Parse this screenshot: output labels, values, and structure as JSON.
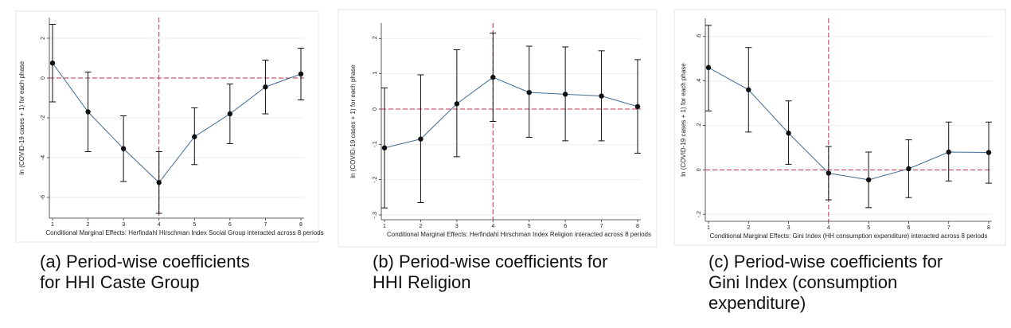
{
  "charts": [
    {
      "caption": "(a)  Period-wise coefficients\n      for HHI Caste Group",
      "chart_data": {
        "type": "line",
        "x": [
          1,
          2,
          3,
          4,
          5,
          6,
          7,
          8
        ],
        "series": [
          {
            "values": [
              0.75,
              -1.7,
              -3.55,
              -5.25,
              -2.95,
              -1.8,
              -0.45,
              0.2
            ],
            "ci_low": [
              -1.2,
              -3.7,
              -5.2,
              -6.8,
              -4.35,
              -3.3,
              -1.8,
              -1.1
            ],
            "ci_high": [
              2.7,
              0.3,
              -1.9,
              -3.7,
              -1.5,
              -0.3,
              0.9,
              1.5
            ]
          }
        ],
        "xlabel": "Conditional Marginal Effects: Herfindahl Hirschman Index Social Group interacted across 8 periods",
        "ylabel": "ln (COVID-19 cases + 1) for each phase",
        "yticks": [
          "2",
          "0",
          "-2",
          "-4",
          "-6"
        ],
        "ytick_values": [
          2,
          0,
          -2,
          -4,
          -6
        ],
        "xticks": [
          "1",
          "2",
          "3",
          "4",
          "5",
          "6",
          "7",
          "8"
        ],
        "ylim": [
          -6.8,
          2.8
        ],
        "ref_x": 4,
        "ref_y": 0,
        "colors": {
          "line": "#3f6b96",
          "ref": "#c0324a",
          "err": "#111111"
        }
      }
    },
    {
      "caption": "(b)  Period-wise coefficients for\n      HHI Religion",
      "chart_data": {
        "type": "line",
        "x": [
          1,
          2,
          3,
          4,
          5,
          6,
          7,
          8
        ],
        "series": [
          {
            "values": [
              -1.1,
              -0.85,
              0.15,
              0.9,
              0.47,
              0.42,
              0.37,
              0.07
            ],
            "ci_low": [
              -2.8,
              -2.65,
              -1.35,
              -0.35,
              -0.8,
              -0.9,
              -0.9,
              -1.25
            ],
            "ci_high": [
              0.6,
              0.97,
              1.68,
              2.15,
              1.78,
              1.76,
              1.65,
              1.4
            ]
          }
        ],
        "xlabel": "Conditional Marginal Effects: Herfindahl Hirschman Index Religion interacted across 8 periods",
        "ylabel": "ln (COVID-19 cases + 1) for each phase",
        "yticks": [
          ".2",
          ".1",
          "0",
          "-.1",
          "-.2",
          "-.3"
        ],
        "ytick_values": [
          2,
          1,
          0,
          -1,
          -2,
          -3
        ],
        "xticks": [
          "1",
          "2",
          "3",
          "4",
          "5",
          "6",
          "7",
          "8"
        ],
        "ylim": [
          -3.0,
          2.3
        ],
        "ref_x": 4,
        "ref_y": 0,
        "colors": {
          "line": "#3f6b96",
          "ref": "#c0324a",
          "err": "#111111"
        }
      }
    },
    {
      "caption": "(c)  Period-wise coefficients for\n      Gini Index (consumption\n      expenditure)",
      "chart_data": {
        "type": "line",
        "x": [
          1,
          2,
          3,
          4,
          5,
          6,
          7,
          8
        ],
        "series": [
          {
            "values": [
              4.6,
              3.6,
              1.65,
              -0.15,
              -0.45,
              0.05,
              0.8,
              0.78
            ],
            "ci_low": [
              2.65,
              1.7,
              0.25,
              -1.35,
              -1.7,
              -1.25,
              -0.5,
              -0.6
            ],
            "ci_high": [
              6.5,
              5.5,
              3.1,
              1.05,
              0.8,
              1.35,
              2.15,
              2.15
            ]
          }
        ],
        "xlabel": "Conditional Marginal Effects: Gini Index (HH consumption expenditure) interacted across 8 periods",
        "ylabel": "ln (COVID-19 cases + 1) for each phase",
        "yticks": [
          ".6",
          ".4",
          ".2",
          "0",
          "-.2"
        ],
        "ytick_values": [
          6,
          4,
          2,
          0,
          -2
        ],
        "xticks": [
          "1",
          "2",
          "3",
          "4",
          "5",
          "6",
          "7",
          "8"
        ],
        "ylim": [
          -2.1,
          6.6
        ],
        "ref_x": 4,
        "ref_y": 0,
        "colors": {
          "line": "#3f6b96",
          "ref": "#c0324a",
          "err": "#111111"
        }
      }
    }
  ]
}
